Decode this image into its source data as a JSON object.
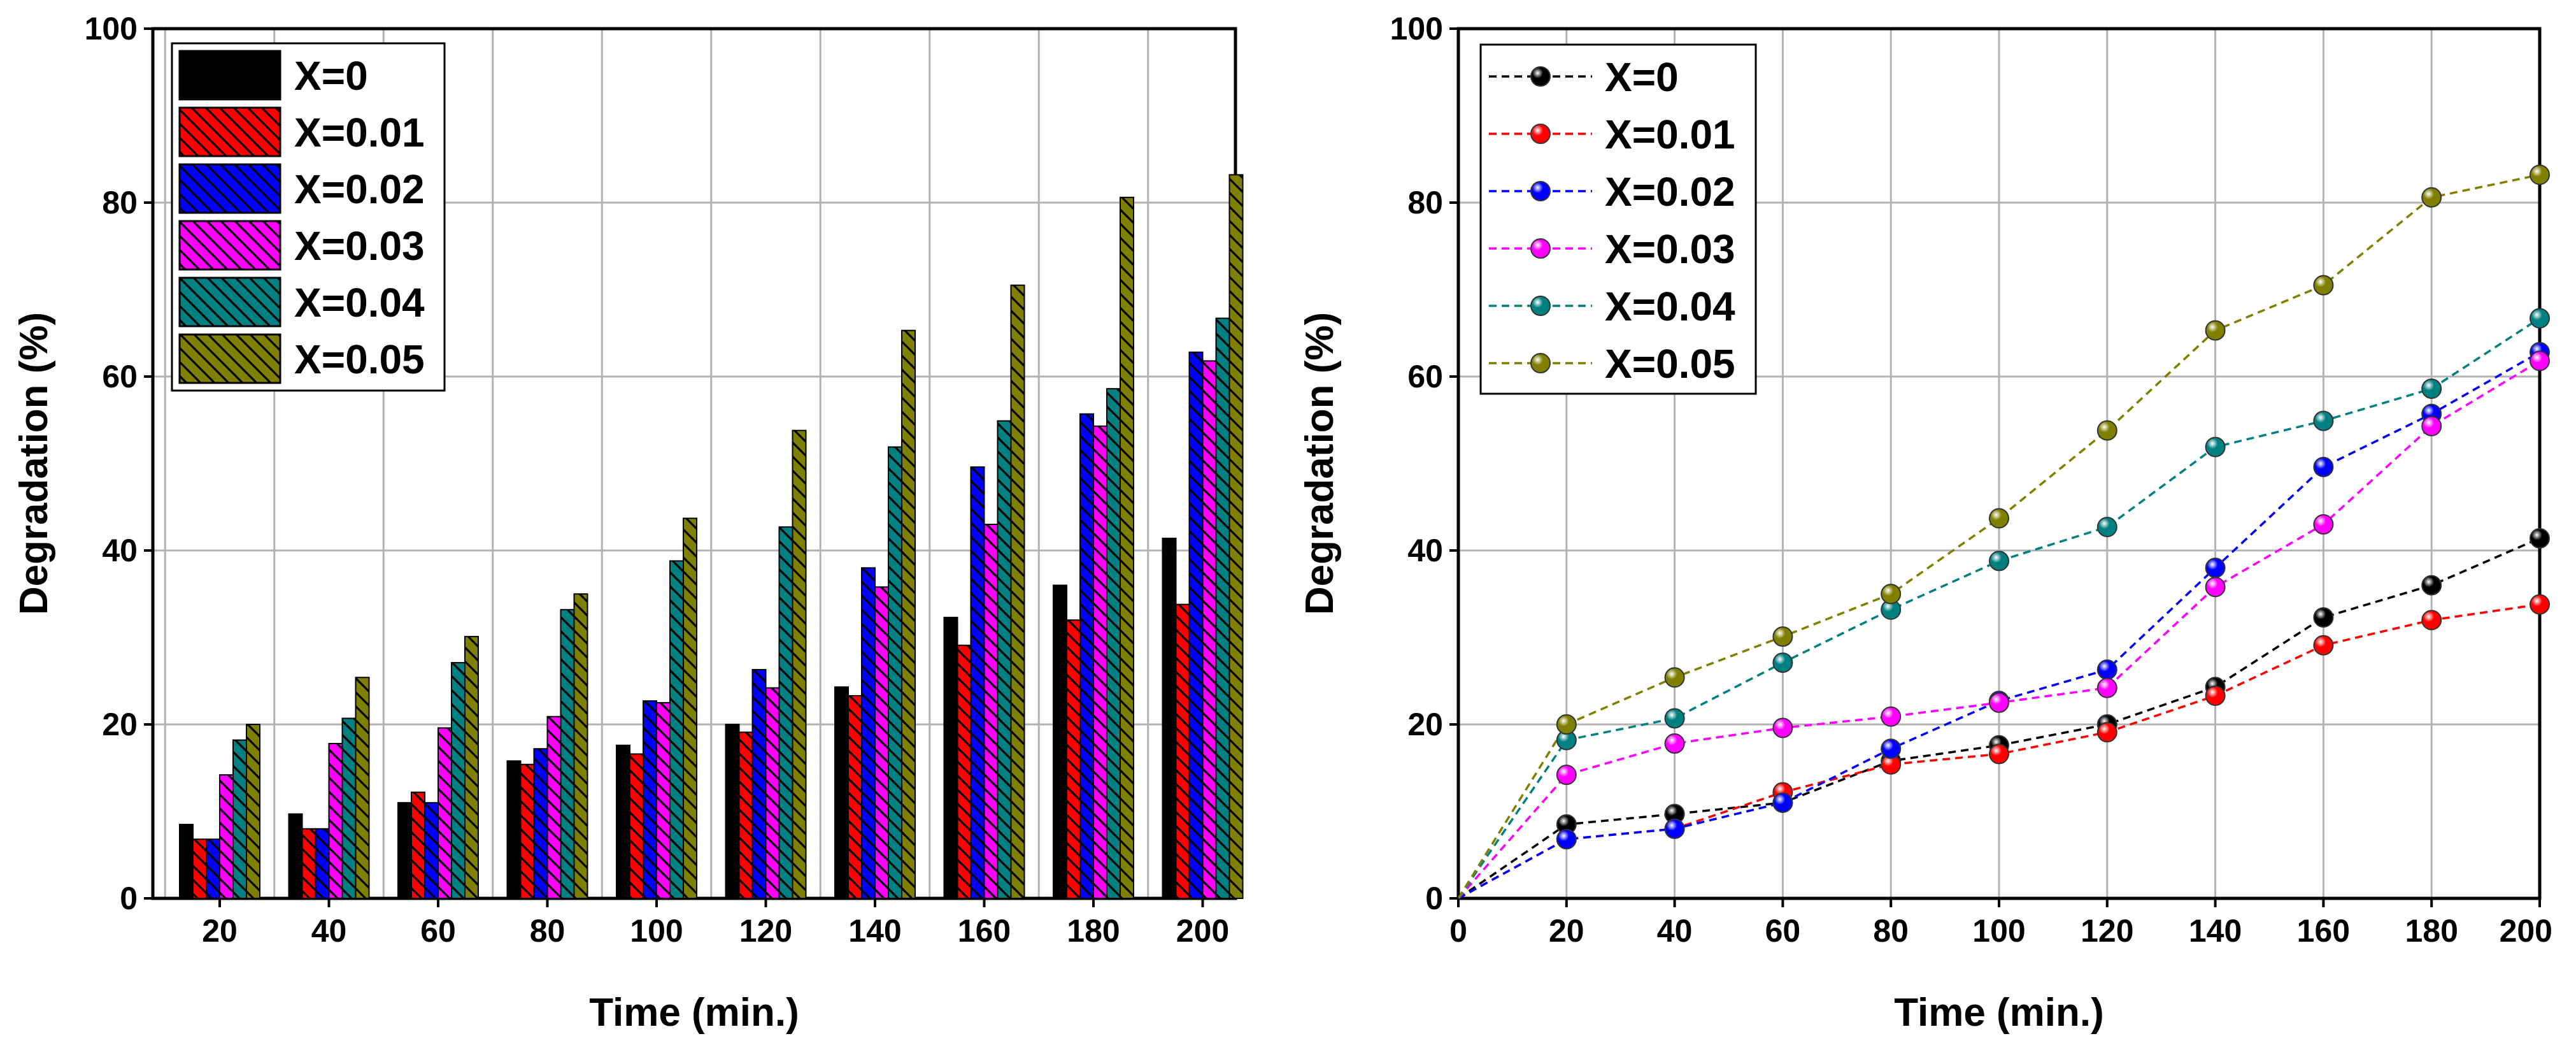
{
  "chart_data": [
    {
      "type": "bar",
      "xlabel": "Time (min.)",
      "ylabel": "Degradation (%)",
      "ylim": [
        0,
        100
      ],
      "yticks": [
        "0",
        "20",
        "40",
        "60",
        "80",
        "100"
      ],
      "categories": [
        "20",
        "40",
        "60",
        "80",
        "100",
        "120",
        "140",
        "160",
        "180",
        "200"
      ],
      "grid": true,
      "legend_position": "top-left",
      "bar_pattern": "diagonal-hatch",
      "series": [
        {
          "name": "X=0",
          "color": "#000000",
          "values": [
            8.5,
            9.7,
            11.0,
            15.8,
            17.6,
            20.0,
            24.3,
            32.3,
            36.0,
            41.4
          ]
        },
        {
          "name": "X=0.01",
          "color": "#ff0000",
          "values": [
            6.8,
            8.0,
            12.2,
            15.4,
            16.6,
            19.1,
            23.3,
            29.1,
            32.0,
            33.8
          ]
        },
        {
          "name": "X=0.02",
          "color": "#0000ff",
          "values": [
            6.8,
            8.0,
            11.0,
            17.2,
            22.7,
            26.3,
            38.0,
            49.6,
            55.7,
            62.8
          ]
        },
        {
          "name": "X=0.03",
          "color": "#ff00ff",
          "values": [
            14.2,
            17.8,
            19.6,
            20.9,
            22.5,
            24.2,
            35.8,
            43.0,
            54.3,
            61.8
          ]
        },
        {
          "name": "X=0.04",
          "color": "#008080",
          "values": [
            18.2,
            20.7,
            27.1,
            33.2,
            38.8,
            42.7,
            51.9,
            54.9,
            58.6,
            66.7
          ]
        },
        {
          "name": "X=0.05",
          "color": "#808000",
          "values": [
            20.0,
            25.4,
            30.1,
            35.0,
            43.7,
            53.8,
            65.3,
            70.5,
            80.6,
            83.2
          ]
        }
      ]
    },
    {
      "type": "line",
      "xlabel": "Time (min.)",
      "ylabel": "Degradation (%)",
      "xlim": [
        0,
        200
      ],
      "ylim": [
        0,
        100
      ],
      "xticks": [
        "0",
        "20",
        "40",
        "60",
        "80",
        "100",
        "120",
        "140",
        "160",
        "180",
        "200"
      ],
      "yticks": [
        "0",
        "20",
        "40",
        "60",
        "80",
        "100"
      ],
      "x": [
        0,
        20,
        40,
        60,
        80,
        100,
        120,
        140,
        160,
        180,
        200
      ],
      "grid": true,
      "legend_position": "top-left",
      "line_style": "dashed",
      "marker": "sphere",
      "series": [
        {
          "name": "X=0",
          "color": "#000000",
          "values": [
            0,
            8.5,
            9.7,
            11.0,
            15.8,
            17.6,
            20.0,
            24.3,
            32.3,
            36.0,
            41.4
          ]
        },
        {
          "name": "X=0.01",
          "color": "#ff0000",
          "values": [
            0,
            6.8,
            8.0,
            12.2,
            15.4,
            16.6,
            19.1,
            23.3,
            29.1,
            32.0,
            33.8
          ]
        },
        {
          "name": "X=0.02",
          "color": "#0000ff",
          "values": [
            0,
            6.8,
            8.0,
            11.0,
            17.2,
            22.7,
            26.3,
            38.0,
            49.6,
            55.7,
            62.8
          ]
        },
        {
          "name": "X=0.03",
          "color": "#ff00ff",
          "values": [
            0,
            14.2,
            17.8,
            19.6,
            20.9,
            22.5,
            24.2,
            35.8,
            43.0,
            54.3,
            61.8
          ]
        },
        {
          "name": "X=0.04",
          "color": "#008080",
          "values": [
            0,
            18.2,
            20.7,
            27.1,
            33.2,
            38.8,
            42.7,
            51.9,
            54.9,
            58.6,
            66.7
          ]
        },
        {
          "name": "X=0.05",
          "color": "#808000",
          "values": [
            0,
            20.0,
            25.4,
            30.1,
            35.0,
            43.7,
            53.8,
            65.3,
            70.5,
            80.6,
            83.2
          ]
        }
      ]
    }
  ]
}
